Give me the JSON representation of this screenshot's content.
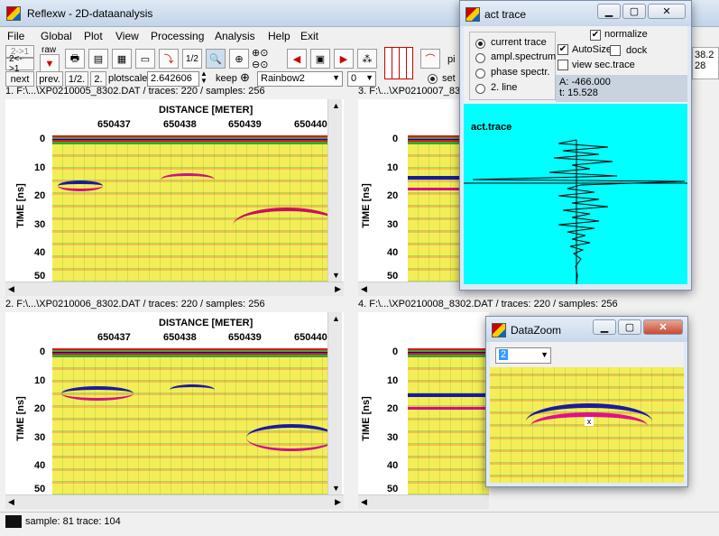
{
  "main_window": {
    "title": "Reflexw - 2D-dataanalysis",
    "menu": [
      "File",
      "Global",
      "Plot",
      "View",
      "Processing",
      "Analysis",
      "Help",
      "Exit"
    ]
  },
  "toolbar": {
    "zoom_btn_top": "2->1",
    "zoom_btn_bottom": "2<->1",
    "raw_label": "raw",
    "next_label": "next",
    "prev_label": "prev.",
    "half_label": "1/2.",
    "two_label": "2.",
    "plotscale_label": "plotscale",
    "plotscale_value": "2.642606",
    "keep_label": "keep",
    "colormap_value": "Rainbow2",
    "small_value": "0",
    "set_label": "set",
    "pick_label": "pi",
    "half_icon_text": "1/2",
    "right_val_top": "38.2",
    "right_val_bottom": "28"
  },
  "panels": [
    {
      "info": "1. F:\\...\\XP0210005_8302.DAT / traces: 220 / samples: 256",
      "xlabel": "DISTANCE [METER]",
      "xticks": [
        "650437",
        "650438",
        "650439",
        "650440"
      ],
      "ylabel": "TIME [ns]",
      "yticks": [
        "0",
        "10",
        "20",
        "30",
        "40",
        "50"
      ]
    },
    {
      "info": "2. F:\\...\\XP0210006_8302.DAT / traces: 220 / samples: 256",
      "xlabel": "DISTANCE [METER]",
      "xticks": [
        "650437",
        "650438",
        "650439",
        "650440"
      ],
      "ylabel": "TIME [ns]",
      "yticks": [
        "0",
        "10",
        "20",
        "30",
        "40",
        "50"
      ]
    },
    {
      "info": "3. F:\\...\\XP0210007_8302.DAT",
      "ylabel": "TIME [ns]",
      "yticks": [
        "0",
        "10",
        "20",
        "30",
        "40",
        "50"
      ]
    },
    {
      "info": "4. F:\\...\\XP0210008_8302.DAT / traces: 220 / samples: 256",
      "ylabel": "TIME [ns]",
      "yticks": [
        "0",
        "10",
        "20",
        "30",
        "40",
        "50"
      ]
    }
  ],
  "act_trace": {
    "title": "act trace",
    "options": [
      "current trace",
      "ampl.spectrum",
      "phase spectr.",
      "2. line"
    ],
    "normalize_label": "normalize",
    "autosize_label": "AutoSize",
    "dock_label": "dock",
    "view_sec_label": "view sec.trace",
    "a_value": "A: -466.000",
    "t_value": "t: 15.528",
    "plot_label": "act.trace",
    "plot_bg": "#00ffff"
  },
  "datazoom": {
    "title": "DataZoom",
    "zoom_value": "2"
  },
  "status": {
    "text": "sample: 81 trace: 104"
  },
  "colors": {
    "radar_bg": "#f3ee57",
    "accent_red": "#d31f1f",
    "cyan": "#00ffff"
  }
}
